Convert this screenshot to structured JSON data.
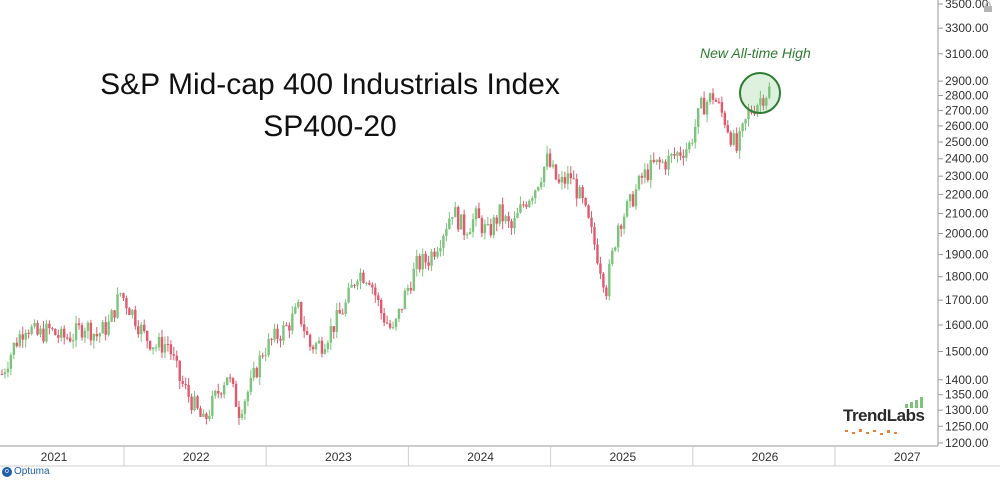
{
  "chart_data": {
    "type": "candlestick",
    "title": "S&P Mid-cap 400 Industrials Index",
    "subtitle": "SP400-20",
    "annotation": "New All-time High",
    "x_ticks": [
      "2021",
      "2022",
      "2023",
      "2024",
      "2025",
      "2026",
      "2027"
    ],
    "y_ticks": [
      "1200.00",
      "1250.00",
      "1300.00",
      "1350.00",
      "1400.00",
      "1500.00",
      "1600.00",
      "1700.00",
      "1800.00",
      "1900.00",
      "2000.00",
      "2100.00",
      "2200.00",
      "2300.00",
      "2400.00",
      "2500.00",
      "2600.00",
      "2700.00",
      "2800.00",
      "2900.00",
      "3100.00",
      "3300.00",
      "3500.00"
    ],
    "y_scale": "log",
    "ylim": [
      1200,
      3550
    ],
    "x_range": [
      "2021-01",
      "2027-12"
    ],
    "weekly_close_path": [
      [
        "2021-01",
        1420
      ],
      [
        "2021-02",
        1520
      ],
      [
        "2021-03",
        1600
      ],
      [
        "2021-04",
        1560
      ],
      [
        "2021-05",
        1580
      ],
      [
        "2021-06",
        1550
      ],
      [
        "2021-07",
        1560
      ],
      [
        "2021-08",
        1600
      ],
      [
        "2021-09",
        1560
      ],
      [
        "2021-10",
        1600
      ],
      [
        "2021-11",
        1730
      ],
      [
        "2021-12",
        1650
      ],
      [
        "2022-01",
        1560
      ],
      [
        "2022-02",
        1520
      ],
      [
        "2022-03",
        1530
      ],
      [
        "2022-04",
        1400
      ],
      [
        "2022-05",
        1330
      ],
      [
        "2022-06",
        1260
      ],
      [
        "2022-07",
        1340
      ],
      [
        "2022-08",
        1420
      ],
      [
        "2022-09",
        1300
      ],
      [
        "2022-10",
        1380
      ],
      [
        "2022-11",
        1500
      ],
      [
        "2022-12",
        1550
      ],
      [
        "2023-01",
        1590
      ],
      [
        "2023-02",
        1660
      ],
      [
        "2023-03",
        1520
      ],
      [
        "2023-04",
        1530
      ],
      [
        "2023-05",
        1600
      ],
      [
        "2023-06",
        1680
      ],
      [
        "2023-07",
        1820
      ],
      [
        "2023-08",
        1800
      ],
      [
        "2023-09",
        1650
      ],
      [
        "2023-10",
        1570
      ],
      [
        "2023-11",
        1720
      ],
      [
        "2023-12",
        1850
      ],
      [
        "2024-01",
        1880
      ],
      [
        "2024-02",
        1980
      ],
      [
        "2024-03",
        2120
      ],
      [
        "2024-04",
        2020
      ],
      [
        "2024-05",
        2080
      ],
      [
        "2024-06",
        2000
      ],
      [
        "2024-07",
        2100
      ],
      [
        "2024-08",
        2020
      ],
      [
        "2024-09",
        2150
      ],
      [
        "2024-10",
        2240
      ],
      [
        "2024-11",
        2390
      ],
      [
        "2024-12",
        2250
      ],
      [
        "2025-01",
        2300
      ],
      [
        "2025-02",
        2150
      ],
      [
        "2025-03",
        1950
      ],
      [
        "2025-04",
        1750
      ],
      [
        "2025-05",
        2050
      ],
      [
        "2025-06",
        2150
      ],
      [
        "2025-07",
        2290
      ],
      [
        "2025-08",
        2360
      ],
      [
        "2025-09",
        2380
      ],
      [
        "2025-10",
        2430
      ],
      [
        "2025-11",
        2480
      ],
      [
        "2025-12",
        2720
      ],
      [
        "2026-01",
        2800
      ],
      [
        "2026-02",
        2640
      ],
      [
        "2026-03",
        2450
      ],
      [
        "2026-04",
        2680
      ],
      [
        "2026-05",
        2780
      ],
      [
        "2026-06",
        2860
      ]
    ],
    "grid": false,
    "legend": "none",
    "colors": {
      "up": "#7cc47c",
      "down": "#e05a6e",
      "callout": "#2e7d32",
      "axis": "#9a9a9a"
    }
  },
  "footer": {
    "brand": "TrendLabs",
    "software": "Optuma"
  }
}
